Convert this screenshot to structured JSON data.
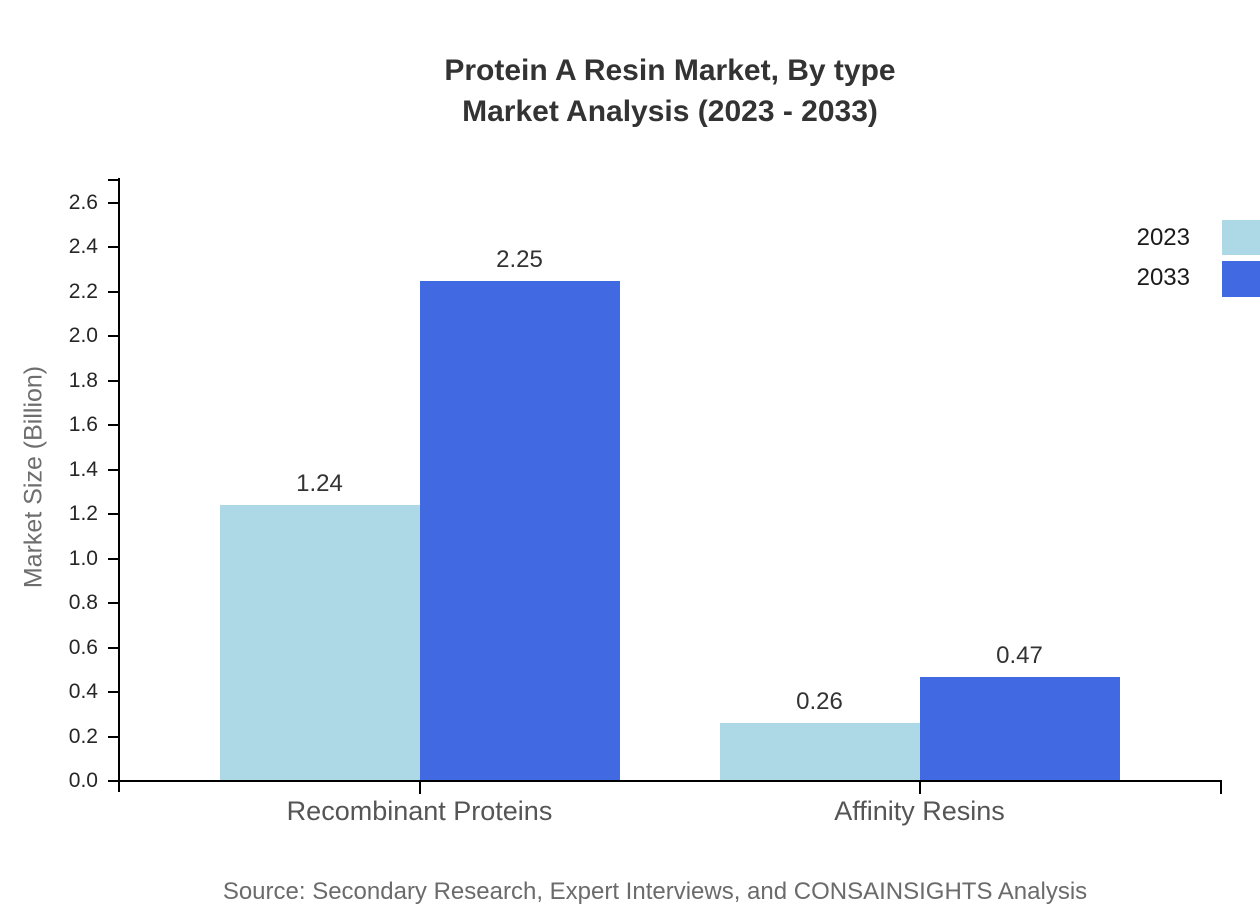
{
  "title": {
    "line1": "Protein A Resin Market, By type",
    "line2": "Market Analysis (2023 - 2033)"
  },
  "source": "Source: Secondary Research, Expert Interviews, and CONSAINSIGHTS Analysis",
  "colors": {
    "series_2023": "#ADD8E6",
    "series_2033": "#4169E1",
    "axis": "#000000",
    "title_text": "#333333",
    "muted_text": "#6b6b6b"
  },
  "chart_data": {
    "type": "bar",
    "title": "Protein A Resin Market, By type — Market Analysis (2023 - 2033)",
    "categories": [
      "Recombinant Proteins",
      "Affinity Resins"
    ],
    "series": [
      {
        "name": "2023",
        "color": "#ADD8E6",
        "values": [
          1.24,
          0.26
        ]
      },
      {
        "name": "2033",
        "color": "#4169E1",
        "values": [
          2.25,
          0.47
        ]
      }
    ],
    "value_labels": {
      "2023": [
        "1.24",
        "0.26"
      ],
      "2033": [
        "2.25",
        "0.47"
      ]
    },
    "xlabel": "",
    "ylabel": "Market Size (Billion)",
    "ylim": [
      0.0,
      2.6
    ],
    "ytick_step": 0.2,
    "yticks": [
      "0.0",
      "0.2",
      "0.4",
      "0.6",
      "0.8",
      "1.0",
      "1.2",
      "1.4",
      "1.6",
      "1.8",
      "2.0",
      "2.2",
      "2.4",
      "2.6"
    ],
    "grid": false,
    "legend_position": "top-right"
  }
}
